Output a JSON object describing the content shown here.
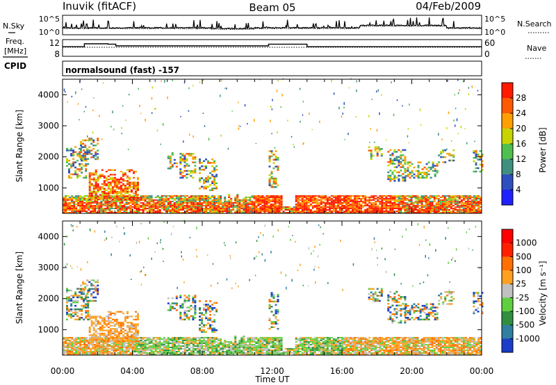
{
  "header": {
    "station": "Inuvik (fitACF)",
    "beam": "Beam 05",
    "date": "04/Feb/2009",
    "program": "normalsound (fast) -157"
  },
  "labels": {
    "nsky": "N.Sky",
    "nsearch": "N.Search",
    "freq_line1": "Freq.",
    "freq_line2": "[MHz]",
    "nave": "Nave",
    "cpid": "CPID",
    "time_axis": "Time UT",
    "slant_range": "Slant Range [km]",
    "power_cbar": "Power [dB]",
    "velocity_cbar": "Velocity [m s⁻¹]"
  },
  "chart_data": [
    {
      "type": "line",
      "name": "noise",
      "left_ticks": [
        "10^5",
        "10^0"
      ],
      "right_ticks": [
        "10^5",
        "10^0"
      ]
    },
    {
      "type": "line",
      "name": "frequency",
      "left_ticks": [
        "12",
        "8"
      ],
      "right_ticks": [
        "60",
        "0"
      ],
      "x": [
        "00:00",
        "01:00",
        "01:30",
        "02:00",
        "02:30",
        "03:00",
        "06:00",
        "09:00",
        "12:00",
        "14:00",
        "16:00",
        "20:00",
        "24:00"
      ],
      "freq_mhz": [
        10.5,
        10.5,
        10.8,
        10.8,
        10.8,
        10.5,
        10.5,
        10.5,
        10.5,
        10.6,
        10.5,
        10.5,
        10.5
      ],
      "nave": [
        48,
        48,
        48,
        48,
        48,
        48,
        48,
        48,
        48,
        48,
        48,
        48,
        48
      ]
    },
    {
      "type": "heatmap",
      "name": "power",
      "x_ticks": [
        "00:00",
        "04:00",
        "08:00",
        "12:00",
        "16:00",
        "20:00",
        "00:00"
      ],
      "y_ticks": [
        1000,
        2000,
        3000,
        4000
      ],
      "ylim": [
        180,
        4500
      ],
      "xlim_hours": [
        0,
        24
      ],
      "colorbar_ticks": [
        "4",
        "8",
        "12",
        "16",
        "20",
        "24",
        "28"
      ],
      "colors": [
        "#2020ff",
        "#2f4fbf",
        "#3f8f7f",
        "#4fbf4f",
        "#c8d400",
        "#ffa000",
        "#ff5a00",
        "#ff1a00"
      ]
    },
    {
      "type": "heatmap",
      "name": "velocity",
      "x_ticks": [
        "00:00",
        "04:00",
        "08:00",
        "12:00",
        "16:00",
        "20:00",
        "00:00"
      ],
      "y_ticks": [
        1000,
        2000,
        3000,
        4000
      ],
      "ylim": [
        180,
        4500
      ],
      "xlim_hours": [
        0,
        24
      ],
      "colorbar_ticks": [
        "1000",
        "500",
        "100",
        "25",
        "-25",
        "-100",
        "-500",
        "-1000"
      ],
      "colors": [
        "#1a3cc8",
        "#2f7fa0",
        "#2f8f3f",
        "#5fcf3f",
        "#c0c0c0",
        "#ffa020",
        "#ff7000",
        "#ff2000",
        "#ff0000"
      ]
    }
  ]
}
